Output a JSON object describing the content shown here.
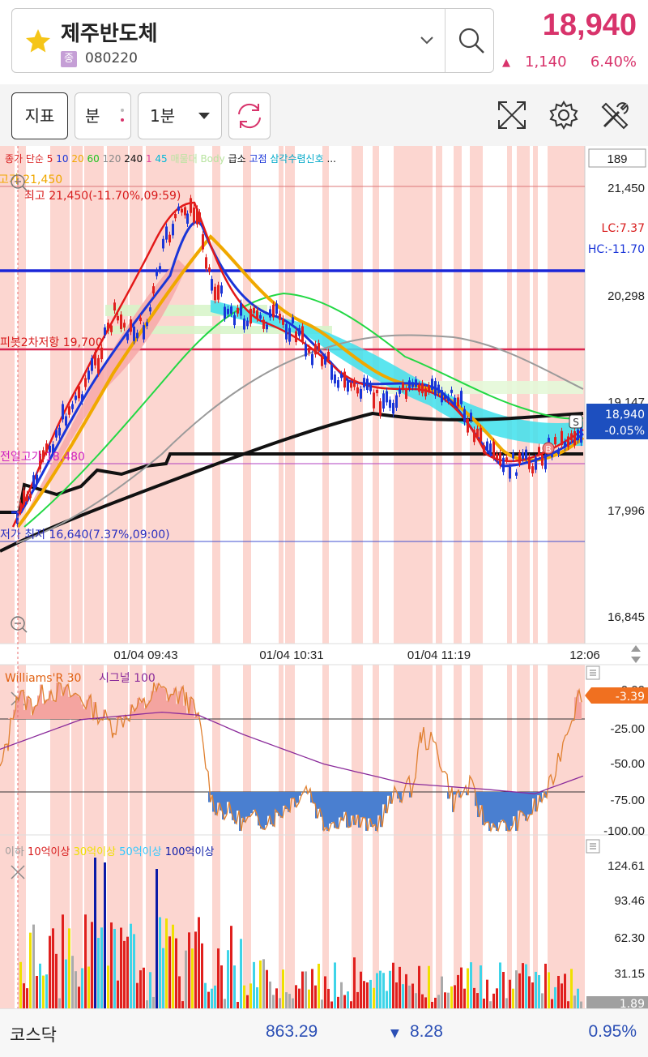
{
  "header": {
    "stock_name": "제주반도체",
    "market_badge": "종",
    "stock_code": "080220",
    "price": "18,940",
    "change_icon": "▲",
    "change": "1,140",
    "change_pct": "6.40%",
    "accent_color": "#d8336b"
  },
  "toolbar": {
    "indicator_label": "지표",
    "period_type_label": "분",
    "period_value": "1분",
    "icons": [
      "refresh-icon",
      "expand-icon",
      "settings-icon",
      "tools-icon"
    ]
  },
  "chart": {
    "legend_items": [
      {
        "text": "종가 단순",
        "color": "#d81b1b"
      },
      {
        "text": "5",
        "color": "#d81b1b"
      },
      {
        "text": "10",
        "color": "#1a35d8"
      },
      {
        "text": "20",
        "color": "#f0a800"
      },
      {
        "text": "60",
        "color": "#1ec51e"
      },
      {
        "text": "120",
        "color": "#888888"
      },
      {
        "text": "240",
        "color": "#111111"
      },
      {
        "text": "1",
        "color": "#e040a0"
      },
      {
        "text": "45",
        "color": "#00b8d8"
      },
      {
        "text": "매물대 Body",
        "color": "#b8e4a0"
      },
      {
        "text": "급소",
        "color": "#111111"
      },
      {
        "text": "고점",
        "color": "#1a35d8"
      },
      {
        "text": "삼각수렴신호",
        "color": "#00a8c8"
      },
      {
        "text": "...",
        "color": "#111111"
      }
    ],
    "count_box": "189",
    "high_tag": "고가 21,450",
    "high_label": "최고 21,450(-11.70%,09:59)",
    "pivot_label": "피봇2차저항 19,700",
    "prev_high_label": "전일고가 18,480",
    "low_label": "저가 최저 16,640(7.37%,09:00)",
    "lc_label": "LC:7.37",
    "hc_label": "HC:-11.70",
    "price_tag": "18,940",
    "price_tag_pct": "-0.05%",
    "y_ticks": [
      "21,450",
      "20,298",
      "19,147",
      "17,996",
      "16,845"
    ],
    "x_ticks": [
      "01/04 09:43",
      "01/04 10:31",
      "01/04 11:19",
      "12:06"
    ],
    "marker_b": "B",
    "marker_s": "S"
  },
  "williams": {
    "legend": "Williams'R 30",
    "signal_label": "시그널 100",
    "current_tag": "-3.39",
    "top_tick": "0.00",
    "y_ticks": [
      "-25.00",
      "-50.00",
      "-75.00",
      "-100.00"
    ]
  },
  "volume": {
    "legend_items": [
      {
        "text": "이하",
        "color": "#999999"
      },
      {
        "text": "10억이상",
        "color": "#d81b1b"
      },
      {
        "text": "30억이상",
        "color": "#f0e000"
      },
      {
        "text": "50억이상",
        "color": "#30c8ff"
      },
      {
        "text": "100억이상",
        "color": "#0a1aa8"
      }
    ],
    "y_ticks": [
      "124.61",
      "93.46",
      "62.30",
      "31.15"
    ],
    "current_tag": "1.89"
  },
  "footer": {
    "index_name": "코스닥",
    "index_value": "863.29",
    "change_icon": "▼",
    "index_change": "8.28",
    "index_pct": "0.95%",
    "down_color": "#2b4fb5"
  }
}
